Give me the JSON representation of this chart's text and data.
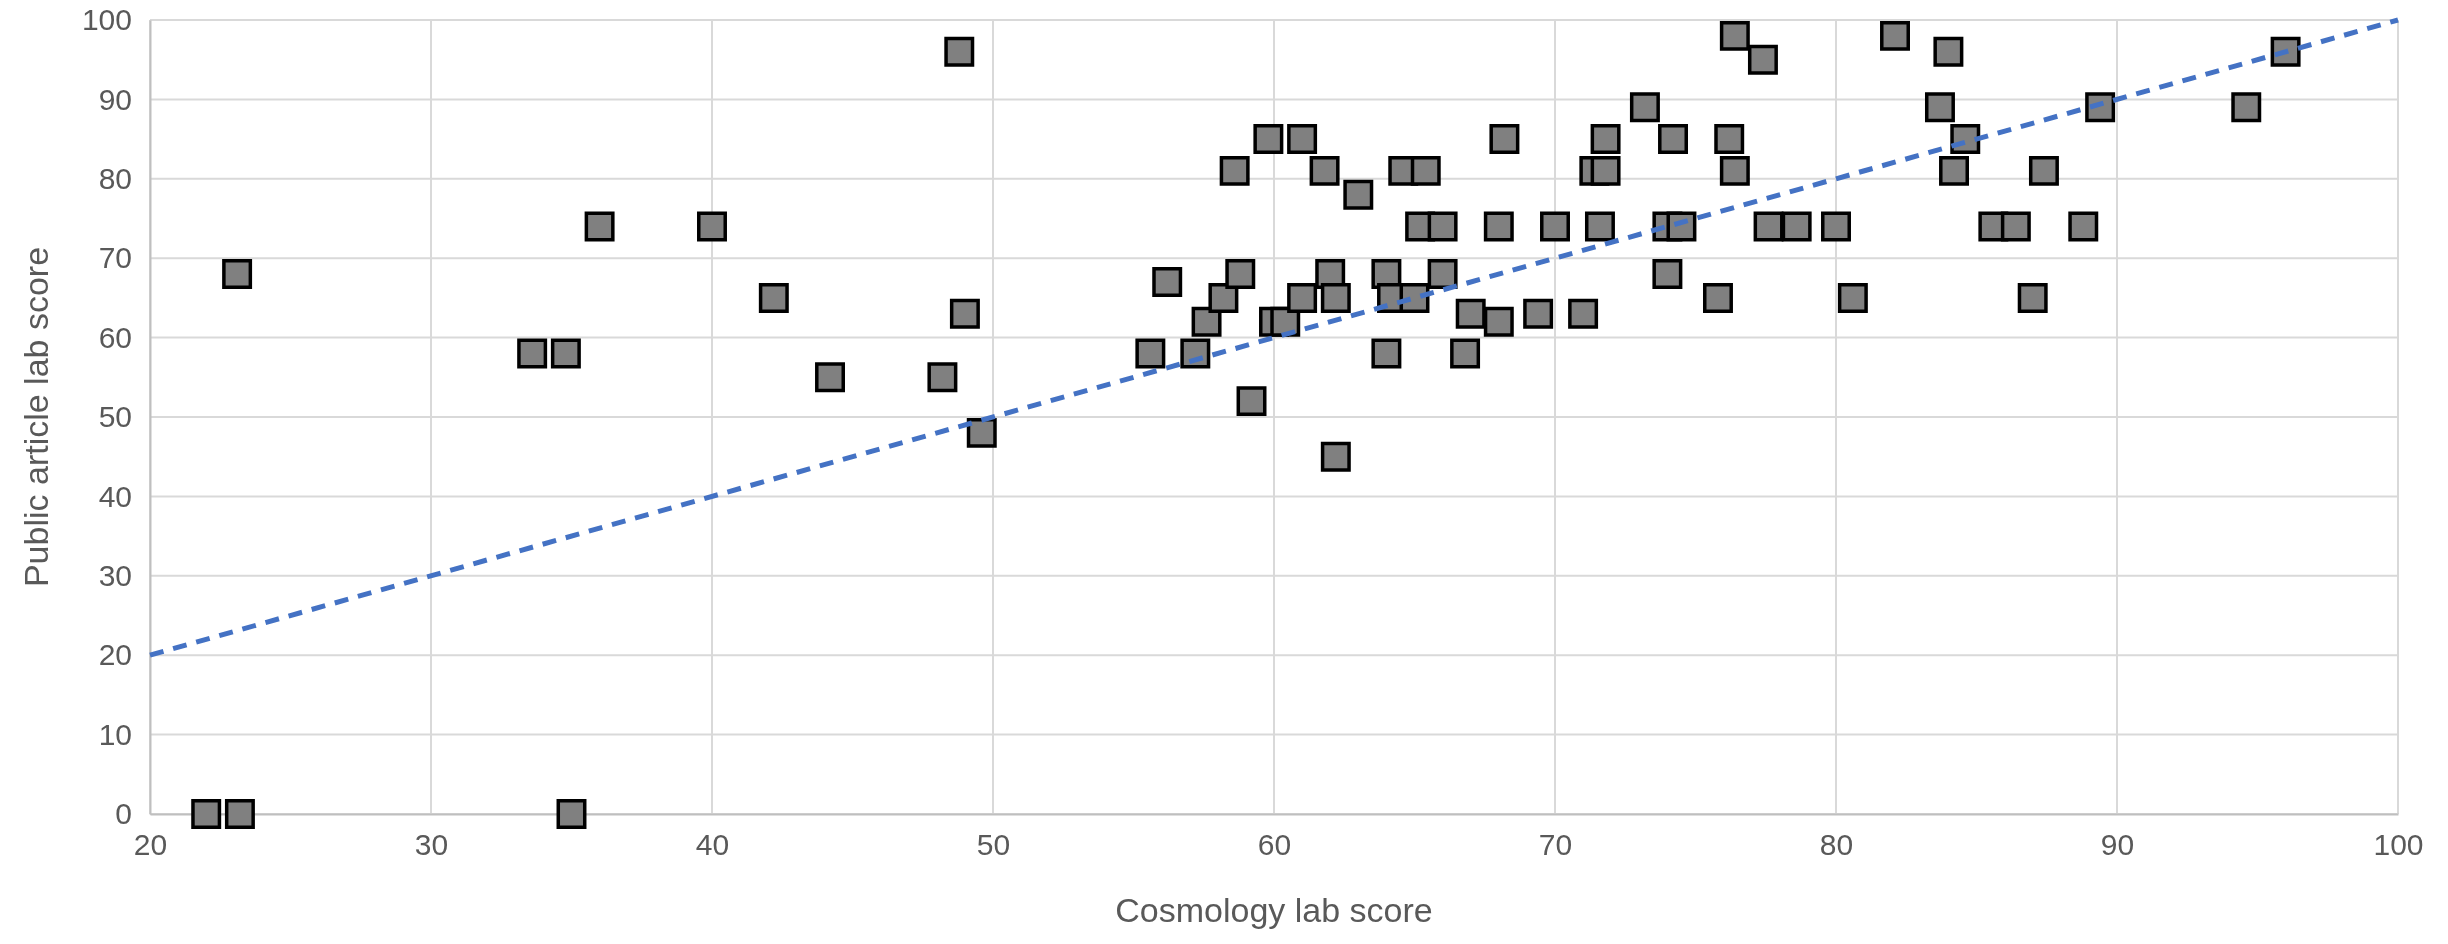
{
  "chart_data": {
    "type": "scatter",
    "xlabel": "Cosmology lab score",
    "ylabel": "Public article lab score",
    "xlim": [
      20,
      100
    ],
    "ylim": [
      0,
      100
    ],
    "xticks": [
      20,
      30,
      40,
      50,
      60,
      70,
      80,
      90,
      100
    ],
    "yticks": [
      0,
      10,
      20,
      30,
      40,
      50,
      60,
      70,
      80,
      90,
      100
    ],
    "grid": true,
    "series": [
      {
        "color": "#808080",
        "marker": "square",
        "x": [
          22.0,
          23.2,
          23.1,
          33.6,
          34.8,
          35.0,
          36.0,
          40.0,
          42.2,
          44.2,
          48.8,
          48.2,
          49.0,
          49.6,
          55.6,
          56.2,
          57.2,
          57.6,
          58.2,
          58.6,
          58.8,
          59.2,
          59.8,
          60.0,
          60.4,
          61.0,
          61.0,
          61.8,
          62.0,
          62.2,
          62.2,
          63.0,
          64.0,
          64.0,
          64.2,
          64.6,
          65.0,
          65.2,
          65.4,
          66.0,
          66.0,
          66.8,
          67.0,
          68.0,
          68.0,
          68.2,
          69.4,
          70.0,
          71.0,
          71.4,
          71.6,
          71.8,
          71.8,
          73.2,
          74.0,
          74.0,
          74.2,
          74.5,
          76.4,
          77.4,
          76.2,
          76.4,
          75.8,
          77.6,
          78.6,
          80.0,
          80.6,
          82.1,
          84.0,
          83.7,
          84.6,
          84.2,
          85.6,
          86.4,
          87.0,
          87.4,
          88.8,
          89.4,
          94.6,
          96.0
        ],
        "values": [
          0,
          0,
          68,
          58,
          58,
          0,
          74,
          74,
          65,
          55,
          96,
          55,
          63,
          48,
          58,
          67,
          58,
          62,
          65,
          81,
          68,
          52,
          85,
          62,
          62,
          85,
          65,
          81,
          68,
          65,
          45,
          78,
          68,
          58,
          65,
          81,
          65,
          74,
          81,
          74,
          68,
          58,
          63,
          74,
          62,
          85,
          63,
          74,
          63,
          81,
          74,
          85,
          81,
          89,
          74,
          68,
          85,
          74,
          98,
          95,
          85,
          81,
          65,
          74,
          74,
          74,
          65,
          98,
          96,
          89,
          85,
          81,
          74,
          74,
          65,
          81,
          74,
          89,
          89,
          96
        ]
      },
      {
        "type": "line",
        "color": "#4472c4",
        "line_style": "dashed",
        "marker": "none",
        "x": [
          20,
          100
        ],
        "values": [
          20,
          100
        ]
      }
    ]
  }
}
